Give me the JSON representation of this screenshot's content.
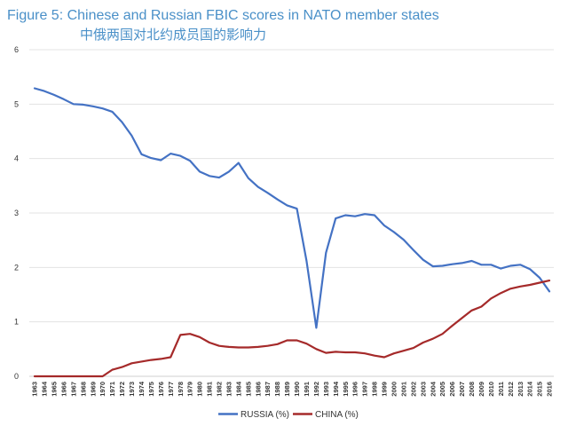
{
  "title": "Figure 5: Chinese and Russian FBIC scores in NATO member states",
  "subtitle": "中俄两国对北约成员国的影响力",
  "chart_data": {
    "type": "line",
    "title": "Figure 5: Chinese and Russian FBIC scores in NATO member states",
    "subtitle": "中俄两国对北约成员国的影响力",
    "xlabel": "",
    "ylabel": "",
    "ylim": [
      0,
      6
    ],
    "yticks": [
      0,
      1,
      2,
      3,
      4,
      5,
      6
    ],
    "grid": true,
    "legend_position": "bottom-center",
    "categories": [
      "1963",
      "1964",
      "1965",
      "1966",
      "1967",
      "1968",
      "1969",
      "1970",
      "1971",
      "1972",
      "1973",
      "1974",
      "1975",
      "1976",
      "1977",
      "1978",
      "1979",
      "1980",
      "1981",
      "1982",
      "1983",
      "1984",
      "1985",
      "1986",
      "1987",
      "1988",
      "1989",
      "1990",
      "1991",
      "1992",
      "1993",
      "1994",
      "1995",
      "1996",
      "1997",
      "1998",
      "1999",
      "2000",
      "2001",
      "2002",
      "2003",
      "2004",
      "2005",
      "2006",
      "2007",
      "2008",
      "2009",
      "2010",
      "2011",
      "2012",
      "2013",
      "2014",
      "2015",
      "2016"
    ],
    "series": [
      {
        "name": "RUSSIA (%)",
        "color": "#4472c4",
        "values": [
          5.29,
          5.24,
          5.17,
          5.09,
          5.0,
          4.99,
          4.96,
          4.92,
          4.86,
          4.67,
          4.42,
          4.08,
          4.01,
          3.97,
          4.09,
          4.05,
          3.96,
          3.76,
          3.68,
          3.65,
          3.76,
          3.92,
          3.64,
          3.48,
          3.37,
          3.25,
          3.14,
          3.08,
          2.12,
          0.89,
          2.27,
          2.9,
          2.96,
          2.94,
          2.98,
          2.96,
          2.77,
          2.65,
          2.51,
          2.32,
          2.14,
          2.02,
          2.03,
          2.06,
          2.08,
          2.12,
          2.05,
          2.05,
          1.98,
          2.03,
          2.05,
          1.97,
          1.81,
          1.56
        ]
      },
      {
        "name": "CHINA (%)",
        "color": "#a52a2a",
        "values": [
          0.0,
          0.0,
          0.0,
          0.0,
          0.0,
          0.0,
          0.0,
          0.0,
          0.12,
          0.17,
          0.24,
          0.27,
          0.3,
          0.32,
          0.35,
          0.76,
          0.78,
          0.72,
          0.62,
          0.56,
          0.54,
          0.53,
          0.53,
          0.54,
          0.56,
          0.59,
          0.66,
          0.66,
          0.6,
          0.5,
          0.43,
          0.45,
          0.44,
          0.44,
          0.42,
          0.38,
          0.35,
          0.42,
          0.47,
          0.52,
          0.62,
          0.69,
          0.78,
          0.93,
          1.07,
          1.21,
          1.28,
          1.43,
          1.53,
          1.61,
          1.65,
          1.68,
          1.72,
          1.76
        ]
      }
    ]
  }
}
